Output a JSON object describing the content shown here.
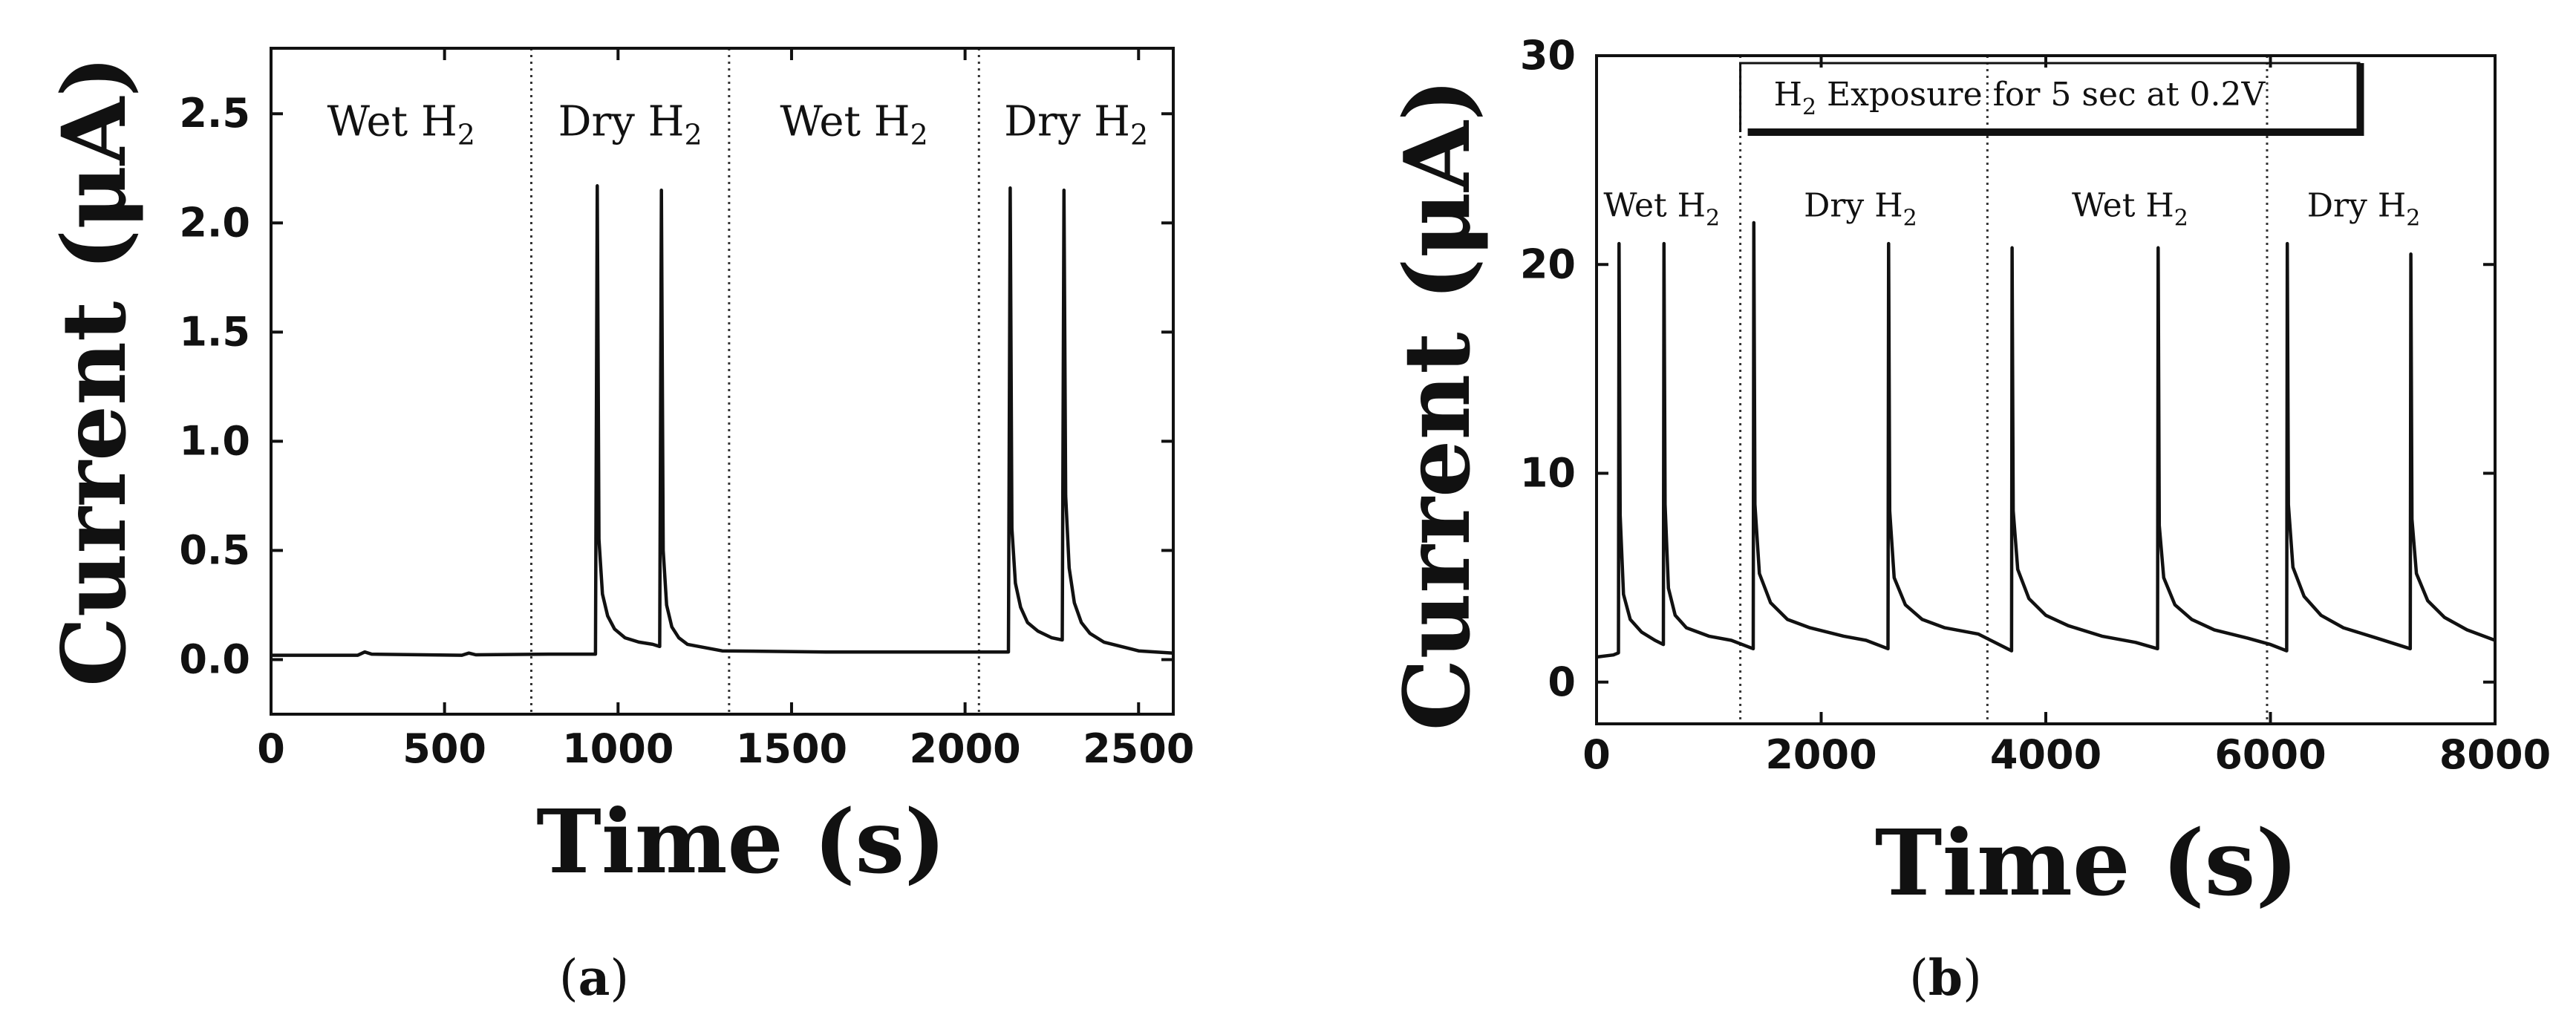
{
  "chart_data": [
    {
      "panel": "a",
      "caption": "a",
      "type": "line",
      "xlabel": "Time (s)",
      "ylabel": "Current (μA)",
      "xlim": [
        0,
        2600
      ],
      "ylim": [
        -0.25,
        2.8
      ],
      "xticks": [
        0,
        500,
        1000,
        1500,
        2000,
        2500
      ],
      "yticks": [
        0.0,
        0.5,
        1.0,
        1.5,
        2.0,
        2.5
      ],
      "ytick_labels": [
        "0.0",
        "0.5",
        "1.0",
        "1.5",
        "2.0",
        "2.5"
      ],
      "region_dividers": [
        750,
        1320,
        2040
      ],
      "regions": [
        {
          "label": "Wet H",
          "sub": "2",
          "x": 375,
          "y": 2.4
        },
        {
          "label": "Dry H",
          "sub": "2",
          "x": 1035,
          "y": 2.4
        },
        {
          "label": "Wet H",
          "sub": "2",
          "x": 1680,
          "y": 2.4
        },
        {
          "label": "Dry H",
          "sub": "2",
          "x": 2320,
          "y": 2.4
        }
      ],
      "pulse_times": [
        940,
        1125,
        2130,
        2285
      ],
      "peak_currents": [
        2.17,
        2.15,
        2.16,
        2.15
      ],
      "series": [
        {
          "x": [
            0,
            250,
            270,
            290,
            550,
            570,
            590,
            800,
            935,
            940,
            945,
            955,
            970,
            990,
            1020,
            1060,
            1100,
            1120,
            1125,
            1130,
            1140,
            1155,
            1175,
            1200,
            1300,
            1600,
            1900,
            2100,
            2125,
            2130,
            2135,
            2145,
            2160,
            2180,
            2210,
            2250,
            2280,
            2285,
            2290,
            2300,
            2315,
            2335,
            2360,
            2400,
            2450,
            2500,
            2600
          ],
          "y": [
            0.02,
            0.02,
            0.035,
            0.025,
            0.02,
            0.03,
            0.022,
            0.025,
            0.025,
            2.17,
            0.55,
            0.3,
            0.2,
            0.14,
            0.1,
            0.08,
            0.07,
            0.06,
            2.15,
            0.5,
            0.25,
            0.15,
            0.1,
            0.07,
            0.04,
            0.035,
            0.035,
            0.035,
            0.035,
            2.16,
            0.6,
            0.35,
            0.24,
            0.17,
            0.13,
            0.1,
            0.09,
            2.15,
            0.75,
            0.42,
            0.26,
            0.17,
            0.12,
            0.08,
            0.06,
            0.04,
            0.03
          ]
        }
      ]
    },
    {
      "panel": "b",
      "caption": "b",
      "type": "line",
      "xlabel": "Time (s)",
      "ylabel": "Current (μA)",
      "xlim": [
        0,
        8000
      ],
      "ylim": [
        -2,
        30
      ],
      "xticks": [
        0,
        2000,
        4000,
        6000,
        8000
      ],
      "yticks": [
        0,
        10,
        20,
        30
      ],
      "ytick_labels": [
        "0",
        "10",
        "20",
        "30"
      ],
      "region_dividers": [
        1280,
        3480,
        5970
      ],
      "regions": [
        {
          "label": "Wet H",
          "sub": "2",
          "x": 580,
          "y": 22.3
        },
        {
          "label": "Dry H",
          "sub": "2",
          "x": 2350,
          "y": 22.3
        },
        {
          "label": "Wet H",
          "sub": "2",
          "x": 4750,
          "y": 22.3
        },
        {
          "label": "Dry H",
          "sub": "2",
          "x": 6830,
          "y": 22.3
        }
      ],
      "banner": {
        "prefix": "H",
        "sub": "2",
        "text": " Exposure for 5 sec at 0.2V",
        "x_start": 1280,
        "x_end": 6800
      },
      "pulse_times": [
        200,
        600,
        1400,
        2600,
        3700,
        5000,
        6150,
        7250
      ],
      "peak_currents": [
        21,
        21,
        22,
        21,
        20.8,
        20.8,
        21,
        20.5
      ],
      "series": [
        {
          "x": [
            0,
            150,
            195,
            200,
            210,
            240,
            300,
            400,
            520,
            595,
            600,
            610,
            640,
            700,
            800,
            1000,
            1200,
            1395,
            1400,
            1410,
            1450,
            1550,
            1700,
            1900,
            2200,
            2400,
            2595,
            2600,
            2610,
            2650,
            2750,
            2900,
            3100,
            3400,
            3695,
            3700,
            3710,
            3750,
            3850,
            4000,
            4200,
            4500,
            4800,
            4995,
            5000,
            5010,
            5050,
            5150,
            5300,
            5500,
            5800,
            6000,
            6145,
            6150,
            6160,
            6200,
            6300,
            6450,
            6650,
            6950,
            7245,
            7250,
            7260,
            7300,
            7400,
            7550,
            7750,
            8000
          ],
          "y": [
            1.2,
            1.3,
            1.4,
            21,
            8,
            4.2,
            3.0,
            2.4,
            2.0,
            1.8,
            21,
            8.5,
            4.5,
            3.2,
            2.6,
            2.2,
            2.0,
            1.6,
            22,
            8.5,
            5.2,
            3.8,
            3.0,
            2.6,
            2.2,
            2.0,
            1.6,
            21,
            8.2,
            5.0,
            3.7,
            3.0,
            2.6,
            2.3,
            1.5,
            20.8,
            8.2,
            5.4,
            4.0,
            3.2,
            2.7,
            2.2,
            1.9,
            1.6,
            20.8,
            7.5,
            5.0,
            3.7,
            3.0,
            2.5,
            2.1,
            1.8,
            1.5,
            21,
            8.5,
            5.5,
            4.1,
            3.2,
            2.6,
            2.1,
            1.6,
            20.5,
            7.8,
            5.2,
            3.9,
            3.1,
            2.5,
            2.0
          ]
        }
      ]
    }
  ]
}
